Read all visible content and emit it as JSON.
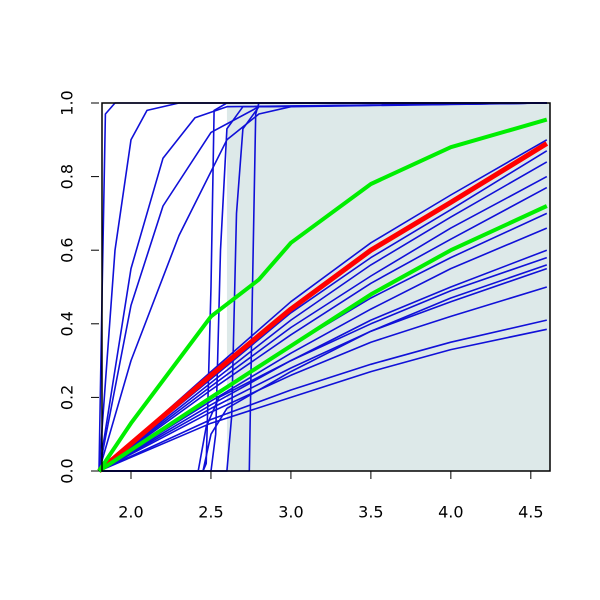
{
  "chart_data": {
    "type": "line",
    "xlim": [
      1.8,
      4.62
    ],
    "ylim": [
      0,
      1
    ],
    "xticks": [
      {
        "value": 2,
        "label": "2.0"
      },
      2.5,
      {
        "value": 3,
        "label": "3.0"
      },
      3.5,
      {
        "value": 4,
        "label": "4.0"
      },
      4.5
    ],
    "yticks": [
      {
        "value": 0,
        "label": "0.0"
      },
      0.2,
      0.4,
      0.6,
      0.8,
      {
        "value": 1,
        "label": "1.0"
      }
    ],
    "band": {
      "x0": 2.6,
      "x1": 4.62,
      "color": "#dde9e9"
    },
    "series": [
      {
        "color": "#1010d8",
        "linewidth": 1.6,
        "x": [
          1.8,
          1.82,
          1.84,
          1.9,
          4.6
        ],
        "values": [
          0,
          0.5,
          0.97,
          1,
          1
        ]
      },
      {
        "color": "#1010d8",
        "linewidth": 1.6,
        "x": [
          1.8,
          1.9,
          2.0,
          2.1,
          2.3,
          4.6
        ],
        "values": [
          0,
          0.6,
          0.9,
          0.98,
          1,
          1
        ]
      },
      {
        "color": "#1010d8",
        "linewidth": 1.6,
        "x": [
          1.8,
          2.0,
          2.2,
          2.4,
          2.6,
          4.6
        ],
        "values": [
          0,
          0.55,
          0.85,
          0.96,
          0.99,
          1
        ]
      },
      {
        "color": "#1010d8",
        "linewidth": 1.6,
        "x": [
          1.8,
          2.0,
          2.2,
          2.5,
          2.8,
          4.6
        ],
        "values": [
          0,
          0.45,
          0.72,
          0.92,
          0.99,
          1
        ]
      },
      {
        "color": "#1010d8",
        "linewidth": 1.6,
        "x": [
          1.8,
          2.0,
          2.3,
          2.6,
          2.8,
          3.0,
          4.6
        ],
        "values": [
          0,
          0.3,
          0.64,
          0.9,
          0.97,
          0.99,
          1
        ]
      },
      {
        "color": "#1010d8",
        "linewidth": 1.6,
        "x": [
          1.8,
          2.45,
          2.47,
          2.5,
          2.52,
          2.6,
          4.6
        ],
        "values": [
          0,
          0,
          0.02,
          0.5,
          0.98,
          1,
          1
        ]
      },
      {
        "color": "#1010d8",
        "linewidth": 1.6,
        "x": [
          1.8,
          2.5,
          2.53,
          2.56,
          2.6,
          2.7,
          4.6
        ],
        "values": [
          0,
          0,
          0.1,
          0.6,
          0.93,
          0.99,
          1
        ]
      },
      {
        "color": "#1010d8",
        "linewidth": 1.6,
        "x": [
          1.8,
          2.6,
          2.63,
          2.66,
          2.7,
          2.8,
          4.6
        ],
        "values": [
          0,
          0,
          0.15,
          0.7,
          0.93,
          0.99,
          1
        ]
      },
      {
        "color": "#1010d8",
        "linewidth": 1.6,
        "x": [
          1.8,
          2.74,
          2.76,
          2.78,
          2.8,
          4.6
        ],
        "values": [
          0,
          0,
          0.5,
          0.97,
          1,
          1
        ]
      },
      {
        "color": "#1010d8",
        "linewidth": 1.6,
        "x": [
          1.8,
          2.5,
          3.0,
          3.5,
          4.0,
          4.6
        ],
        "values": [
          0,
          0.27,
          0.46,
          0.62,
          0.75,
          0.9
        ]
      },
      {
        "color": "#1010d8",
        "linewidth": 1.6,
        "x": [
          1.8,
          2.5,
          3.0,
          3.5,
          4.0,
          4.6
        ],
        "values": [
          0,
          0.25,
          0.43,
          0.58,
          0.71,
          0.87
        ]
      },
      {
        "color": "#1010d8",
        "linewidth": 1.6,
        "x": [
          1.8,
          2.5,
          3.0,
          3.5,
          4.0,
          4.6
        ],
        "values": [
          0,
          0.24,
          0.41,
          0.56,
          0.69,
          0.84
        ]
      },
      {
        "color": "#1010d8",
        "linewidth": 1.6,
        "x": [
          1.8,
          2.5,
          3.0,
          3.5,
          4.0,
          4.6
        ],
        "values": [
          0,
          0.23,
          0.39,
          0.53,
          0.66,
          0.8
        ]
      },
      {
        "color": "#1010d8",
        "linewidth": 1.6,
        "x": [
          1.8,
          2.5,
          3.0,
          3.5,
          4.0,
          4.6
        ],
        "values": [
          0,
          0.22,
          0.37,
          0.51,
          0.63,
          0.77
        ]
      },
      {
        "color": "#1010d8",
        "linewidth": 1.6,
        "x": [
          1.8,
          2.5,
          3.0,
          3.5,
          4.0,
          4.6
        ],
        "values": [
          0,
          0.2,
          0.34,
          0.47,
          0.58,
          0.7
        ]
      },
      {
        "color": "#1010d8",
        "linewidth": 1.6,
        "x": [
          1.8,
          2.5,
          3.0,
          3.5,
          4.0,
          4.6
        ],
        "values": [
          0,
          0.19,
          0.32,
          0.44,
          0.55,
          0.66
        ]
      },
      {
        "color": "#1010d8",
        "linewidth": 1.6,
        "x": [
          1.8,
          2.5,
          3.0,
          3.5,
          4.0,
          4.6
        ],
        "values": [
          0,
          0.18,
          0.3,
          0.41,
          0.5,
          0.6
        ]
      },
      {
        "color": "#1010d8",
        "linewidth": 1.6,
        "x": [
          1.8,
          2.5,
          3.0,
          3.5,
          4.0,
          4.6
        ],
        "values": [
          0,
          0.17,
          0.28,
          0.38,
          0.46,
          0.55
        ]
      },
      {
        "color": "#1010d8",
        "linewidth": 1.6,
        "x": [
          1.8,
          2.5,
          3.0,
          3.5,
          4.0,
          4.6
        ],
        "values": [
          0,
          0.16,
          0.26,
          0.35,
          0.42,
          0.5
        ]
      },
      {
        "color": "#1010d8",
        "linewidth": 1.6,
        "x": [
          1.8,
          2.5,
          3.0,
          3.5,
          4.0,
          4.6
        ],
        "values": [
          0,
          0.14,
          0.22,
          0.29,
          0.35,
          0.41
        ]
      },
      {
        "color": "#1010d8",
        "linewidth": 1.6,
        "x": [
          1.8,
          2.5,
          3.0,
          3.5,
          4.0,
          4.6
        ],
        "values": [
          0,
          0.13,
          0.2,
          0.27,
          0.33,
          0.385
        ]
      },
      {
        "color": "#1010d8",
        "linewidth": 1.6,
        "x": [
          1.8,
          2.45,
          2.5,
          2.6,
          3.0,
          3.5,
          4.0,
          4.6
        ],
        "values": [
          0,
          0,
          0.1,
          0.17,
          0.27,
          0.38,
          0.47,
          0.56
        ]
      },
      {
        "color": "#1010d8",
        "linewidth": 1.6,
        "x": [
          1.8,
          2.42,
          2.47,
          2.55,
          3.0,
          3.5,
          4.0,
          4.6
        ],
        "values": [
          0,
          0,
          0.12,
          0.2,
          0.3,
          0.4,
          0.49,
          0.58
        ]
      },
      {
        "color": "#ff0000",
        "linewidth": 5,
        "x": [
          1.8,
          2.5,
          3.0,
          3.5,
          4.0,
          4.6
        ],
        "values": [
          0,
          0.26,
          0.44,
          0.6,
          0.73,
          0.89
        ]
      },
      {
        "color": "#00ee00",
        "linewidth": 4,
        "x": [
          1.8,
          2.0,
          2.5,
          2.8,
          3.0,
          3.5,
          4.0,
          4.6
        ],
        "values": [
          0,
          0.13,
          0.42,
          0.52,
          0.62,
          0.78,
          0.88,
          0.955
        ]
      },
      {
        "color": "#00ee00",
        "linewidth": 4,
        "x": [
          1.8,
          2.5,
          3.0,
          3.5,
          4.0,
          4.6
        ],
        "values": [
          0,
          0.2,
          0.34,
          0.48,
          0.6,
          0.72
        ]
      }
    ]
  }
}
